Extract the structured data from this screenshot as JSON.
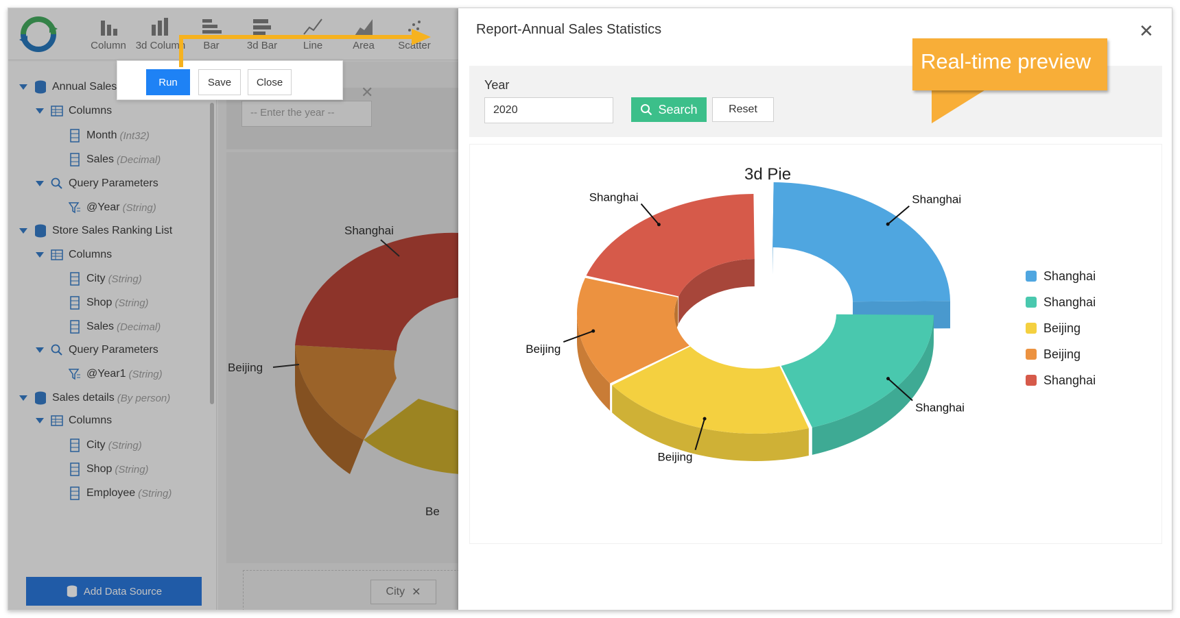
{
  "designer": {
    "toolbar": [
      {
        "label": "Column",
        "icon": "column-chart-icon"
      },
      {
        "label": "3d Column",
        "icon": "3d-column-chart-icon"
      },
      {
        "label": "Bar",
        "icon": "bar-chart-icon"
      },
      {
        "label": "3d Bar",
        "icon": "3d-bar-chart-icon"
      },
      {
        "label": "Line",
        "icon": "line-chart-icon"
      },
      {
        "label": "Area",
        "icon": "area-chart-icon"
      },
      {
        "label": "Scatter",
        "icon": "scatter-chart-icon"
      }
    ],
    "popover": {
      "run": "Run",
      "save": "Save",
      "close": "Close"
    },
    "tree": [
      {
        "label": "Annual Sales"
      },
      {
        "label": "Columns"
      },
      {
        "label": "Month",
        "type": "(Int32)"
      },
      {
        "label": "Sales",
        "type": "(Decimal)"
      },
      {
        "label": "Query Parameters"
      },
      {
        "label": "@Year",
        "type": "(String)"
      },
      {
        "label": "Store Sales Ranking List"
      },
      {
        "label": "Columns"
      },
      {
        "label": "City",
        "type": "(String)"
      },
      {
        "label": "Shop",
        "type": "(String)"
      },
      {
        "label": "Sales",
        "type": "(Decimal)"
      },
      {
        "label": "Query Parameters"
      },
      {
        "label": "@Year1",
        "type": "(String)"
      },
      {
        "label": "Sales details",
        "type": "(By person)"
      },
      {
        "label": "Columns"
      },
      {
        "label": "City",
        "type": "(String)"
      },
      {
        "label": "Shop",
        "type": "(String)"
      },
      {
        "label": "Employee",
        "type": "(String)"
      }
    ],
    "add_data_source": "Add Data Source",
    "year_placeholder": "-- Enter the year --",
    "city_tag": "City",
    "bg_labels": {
      "shanghai": "Shanghai",
      "beijing": "Beijing",
      "be": "Be"
    }
  },
  "dialog": {
    "title": "Report-Annual Sales Statistics",
    "year_label": "Year",
    "year_value": "2020",
    "search": "Search",
    "reset": "Reset"
  },
  "callout": "Real-time preview",
  "chart_data": {
    "type": "pie",
    "title": "3d Pie",
    "variant": "3d donut",
    "legend_position": "right",
    "slices": [
      {
        "name": "Shanghai",
        "value": 25,
        "color": "#4fa6e0"
      },
      {
        "name": "Shanghai",
        "value": 20,
        "color": "#49c8ae"
      },
      {
        "name": "Beijing",
        "value": 20,
        "color": "#f4d040"
      },
      {
        "name": "Beijing",
        "value": 15,
        "color": "#ec9240"
      },
      {
        "name": "Shanghai",
        "value": 20,
        "color": "#d65a4a"
      }
    ],
    "legend": [
      "Shanghai",
      "Shanghai",
      "Beijing",
      "Beijing",
      "Shanghai"
    ]
  }
}
